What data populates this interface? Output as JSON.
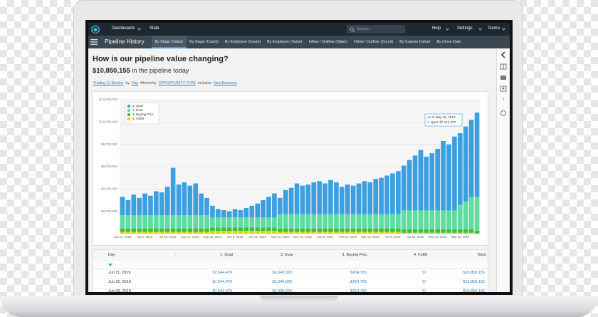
{
  "nav": {
    "items": [
      "Dashboards",
      "Slate"
    ],
    "search": "Search",
    "right": [
      "Help",
      "Settings",
      "Demo"
    ]
  },
  "toolbar": {
    "title": "Pipeline History",
    "tabs": [
      {
        "label": "By Stage (Value)",
        "active": true
      },
      {
        "label": "By Stage (Count)",
        "active": false
      },
      {
        "label": "By Employee (Count)",
        "active": false
      },
      {
        "label": "By Employee (Value)",
        "active": false
      },
      {
        "label": "Inflow / Outflow (Value)",
        "active": false
      },
      {
        "label": "Inflow / Outflow (Count)",
        "active": false
      },
      {
        "label": "By Custom Cohort",
        "active": false
      },
      {
        "label": "By Close Date",
        "active": false
      }
    ]
  },
  "header": {
    "title": "How is our pipeline value changing?",
    "amount": "$10,850,155",
    "caption": "in the pipeline today"
  },
  "filters": [
    {
      "text": "Trailing 12 Months",
      "link": true
    },
    {
      "text": "by",
      "link": false
    },
    {
      "text": "Day",
      "link": true
    },
    {
      "text": "filtered by",
      "link": false
    },
    {
      "text": "OPPORTUNITY TYPE",
      "link": true
    },
    {
      "text": "includes",
      "link": false
    },
    {
      "text": "New Business",
      "link": true
    }
  ],
  "chart_data": {
    "type": "stacked_bar",
    "legend": "top-left",
    "grid": true,
    "categories": [
      "Jun 11, 2018",
      null,
      null,
      null,
      "Jul 1, 2018",
      null,
      null,
      null,
      "Jul 29, 2018",
      null,
      null,
      null,
      "Aug 17, 2018",
      null,
      null,
      null,
      "Sep 16, 2018",
      null,
      null,
      null,
      "Oct 5, 2018",
      null,
      null,
      null,
      "Oct 31, 2018",
      null,
      null,
      null,
      "Nov 21, 2018",
      null,
      null,
      null,
      "Dec 13, 2018",
      null,
      null,
      null,
      "Jan 8, 2019",
      null,
      null,
      null,
      "Feb 12, 2019",
      null,
      null,
      null,
      "Mar 13, 2019",
      null,
      null,
      null,
      "Apr 5, 2019",
      null,
      null,
      null,
      "Apr 24, 2019",
      null,
      null,
      null,
      "May 14, 2019",
      null,
      null,
      null,
      "May 26, 2019",
      null,
      null,
      null
    ],
    "series": [
      {
        "name": "1. Qual",
        "color": "#3c9fe0",
        "values": [
          1650000,
          1350000,
          1850000,
          1550000,
          1950000,
          1750000,
          2150000,
          2050000,
          2550000,
          4250000,
          2750000,
          2950000,
          2650000,
          2850000,
          1950000,
          1550000,
          1050000,
          750000,
          650000,
          550000,
          750000,
          650000,
          850000,
          1050000,
          1250000,
          1550000,
          1850000,
          2150000,
          1450000,
          2150000,
          2350000,
          2750000,
          2550000,
          2650000,
          2850000,
          2950000,
          2750000,
          3050000,
          2850000,
          2450000,
          2650000,
          2550000,
          2750000,
          2950000,
          2850000,
          3150000,
          3250000,
          3450000,
          3650000,
          3850000,
          4020000,
          4520000,
          4920000,
          5420000,
          4820000,
          5120000,
          5520000,
          6220000,
          5920000,
          6620000,
          6420000,
          6720000,
          6920000,
          7544470
        ]
      },
      {
        "name": "2. Eval",
        "color": "#5ddda0",
        "values": [
          1200000,
          1200000,
          1200000,
          1200000,
          1200000,
          1200000,
          1200000,
          1200000,
          1200000,
          1200000,
          1200000,
          1200000,
          1200000,
          1200000,
          1200000,
          1200000,
          900000,
          900000,
          900000,
          900000,
          900000,
          900000,
          900000,
          900000,
          900000,
          900000,
          900000,
          900000,
          1300000,
          1300000,
          1300000,
          1300000,
          1300000,
          1300000,
          1300000,
          1300000,
          1300000,
          1300000,
          1300000,
          1300000,
          1300000,
          1300000,
          1300000,
          1300000,
          1300000,
          1300000,
          1300000,
          1300000,
          1300000,
          1300000,
          1700000,
          1700000,
          1700000,
          1700000,
          1700000,
          1700000,
          1700000,
          1700000,
          1700000,
          1700000,
          2200000,
          2500000,
          2900000,
          3040920
        ]
      },
      {
        "name": "3. Buying Proc",
        "color": "#3bbf3b",
        "values": [
          300000,
          300000,
          300000,
          300000,
          300000,
          300000,
          300000,
          300000,
          300000,
          300000,
          300000,
          300000,
          300000,
          300000,
          300000,
          300000,
          300000,
          300000,
          300000,
          300000,
          300000,
          300000,
          300000,
          300000,
          300000,
          300000,
          300000,
          300000,
          300000,
          300000,
          300000,
          300000,
          300000,
          300000,
          300000,
          300000,
          300000,
          300000,
          300000,
          300000,
          300000,
          300000,
          300000,
          300000,
          300000,
          300000,
          300000,
          300000,
          300000,
          300000,
          300000,
          300000,
          300000,
          300000,
          300000,
          300000,
          300000,
          300000,
          300000,
          300000,
          300000,
          300000,
          300000,
          264765
        ]
      },
      {
        "name": "4. Fulfill",
        "color": "#e8d100",
        "values": [
          150000,
          150000,
          150000,
          150000,
          150000,
          150000,
          150000,
          150000,
          150000,
          150000,
          150000,
          150000,
          150000,
          150000,
          150000,
          150000,
          250000,
          250000,
          250000,
          250000,
          250000,
          250000,
          250000,
          250000,
          250000,
          250000,
          250000,
          250000,
          150000,
          150000,
          150000,
          150000,
          150000,
          150000,
          150000,
          150000,
          150000,
          150000,
          150000,
          150000,
          150000,
          150000,
          150000,
          150000,
          150000,
          150000,
          150000,
          150000,
          150000,
          150000,
          80000,
          80000,
          80000,
          80000,
          80000,
          80000,
          80000,
          80000,
          80000,
          80000,
          80000,
          80000,
          80000,
          0
        ]
      }
    ],
    "ylim": [
      0,
      12000000
    ],
    "yticks": [
      {
        "value": 2000000,
        "label": "$2,000,000"
      },
      {
        "value": 4000000,
        "label": "$4,000,000"
      },
      {
        "value": 6000000,
        "label": "$6,000,000"
      },
      {
        "value": 8000000,
        "label": "$8,000,000"
      },
      {
        "value": 10000000,
        "label": "$10,000,000"
      },
      {
        "value": 12000000,
        "label": "$12,000,000"
      }
    ],
    "tooltip": {
      "title": "As of May 28, 2019",
      "line": "1. Qual: $7,113,478"
    }
  },
  "table": {
    "columns": [
      "Day",
      "1. Qual",
      "2. Eval",
      "3. Buying Proc",
      "4. Fulfill",
      "Total"
    ],
    "rows": [
      [
        "Jun 11, 2019",
        "$7,544,470",
        "$3,040,920",
        "$264,765",
        "$0",
        "$10,850,155"
      ],
      [
        "Jun 10, 2019",
        "$7,544,470",
        "$3,040,920",
        "$264,765",
        "$0",
        "$10,850,155"
      ],
      [
        "Jun 09, 2019",
        "$7,544,470",
        "$3,040,920",
        "$264,765",
        "$0",
        "$10,850,155"
      ]
    ]
  }
}
